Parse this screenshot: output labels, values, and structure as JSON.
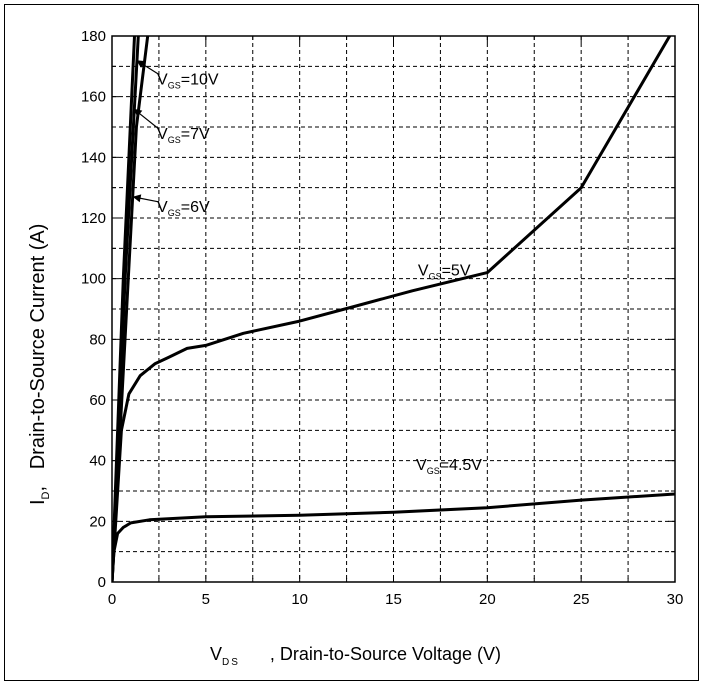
{
  "chart_data": {
    "type": "line",
    "title": "",
    "xlabel": {
      "symbol": "V",
      "sub": "DS",
      "text": ", Drain-to-Source Voltage (V)"
    },
    "ylabel": {
      "symbol": "I",
      "sub": "D",
      "text": ",   Drain-to-Source Current (A)"
    },
    "xlim": [
      0,
      30
    ],
    "ylim": [
      0,
      180
    ],
    "x_ticks": [
      0,
      5,
      10,
      15,
      20,
      25,
      30
    ],
    "y_ticks": [
      0,
      20,
      40,
      60,
      80,
      100,
      120,
      140,
      160,
      180
    ],
    "grid": true,
    "series": [
      {
        "name": "VGS=10V",
        "points": [
          [
            0,
            0
          ],
          [
            0.6,
            100
          ],
          [
            1.2,
            180
          ],
          [
            1.3,
            190
          ]
        ]
      },
      {
        "name": "VGS=7V",
        "points": [
          [
            0,
            0
          ],
          [
            0.7,
            100
          ],
          [
            1.4,
            180
          ],
          [
            1.5,
            190
          ]
        ]
      },
      {
        "name": "VGS=6V",
        "points": [
          [
            0,
            0
          ],
          [
            1.3,
            150
          ],
          [
            1.9,
            180
          ],
          [
            2.0,
            190
          ]
        ]
      },
      {
        "name": "VGS=5V",
        "points": [
          [
            0,
            0
          ],
          [
            0.5,
            50
          ],
          [
            0.9,
            62
          ],
          [
            1.5,
            68
          ],
          [
            2.3,
            72
          ],
          [
            3,
            74
          ],
          [
            4,
            77
          ],
          [
            5,
            78
          ],
          [
            7,
            82
          ],
          [
            10,
            86
          ],
          [
            13,
            91
          ],
          [
            16,
            96
          ],
          [
            20,
            102
          ],
          [
            25,
            130
          ],
          [
            30,
            183
          ]
        ]
      },
      {
        "name": "VGS=4.5V",
        "points": [
          [
            0,
            0
          ],
          [
            0.1,
            10
          ],
          [
            0.3,
            16
          ],
          [
            0.6,
            18
          ],
          [
            1,
            19.5
          ],
          [
            2,
            20.5
          ],
          [
            5,
            21.5
          ],
          [
            10,
            22
          ],
          [
            15,
            23
          ],
          [
            20,
            24.5
          ],
          [
            25,
            27
          ],
          [
            30,
            29
          ]
        ]
      }
    ],
    "annotations": [
      {
        "symbol": "V",
        "sub": "GS",
        "value": "=10V",
        "at": [
          2.4,
          164
        ],
        "arrow_to": [
          1.3,
          172
        ]
      },
      {
        "symbol": "V",
        "sub": "GS",
        "value": "=7V",
        "at": [
          2.4,
          146
        ],
        "arrow_to": [
          1.15,
          156
        ]
      },
      {
        "symbol": "V",
        "sub": "GS",
        "value": "=6V",
        "at": [
          2.4,
          122
        ],
        "arrow_to": [
          1.1,
          127
        ]
      },
      {
        "symbol": "V",
        "sub": "GS",
        "value": "=5V",
        "at": [
          16.3,
          101
        ],
        "arrow_to": null
      },
      {
        "symbol": "V",
        "sub": "GS",
        "value": "=4.5V",
        "at": [
          16.2,
          37
        ],
        "arrow_to": null
      }
    ]
  }
}
